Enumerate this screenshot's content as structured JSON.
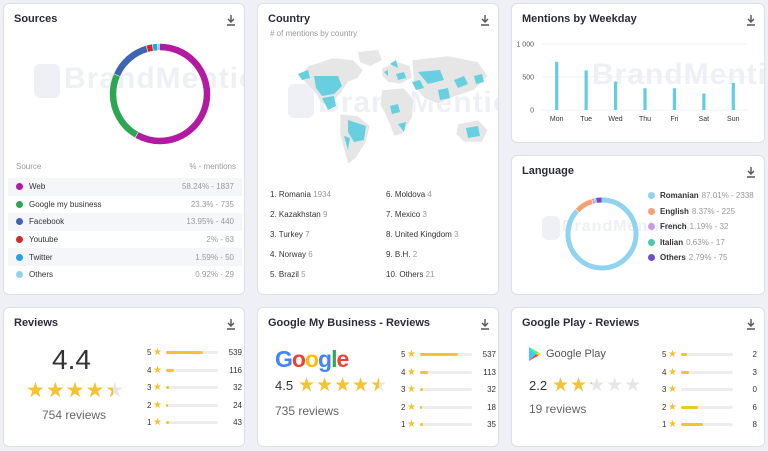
{
  "colors": {
    "web": "#b21aa1",
    "gmb": "#2ea552",
    "facebook": "#3e64b4",
    "youtube": "#d12a2a",
    "twitter": "#26a2e6",
    "others": "#8fd3f0",
    "bar": "#62cde0",
    "star": "#f5c330"
  },
  "watermark": "BrandMentions",
  "sources": {
    "title": "Sources",
    "col_source": "Source",
    "col_mentions": "% - mentions",
    "items": [
      {
        "label": "Web",
        "value": "58.24% - 1837",
        "pct": 58.24,
        "color": "#b21aa1"
      },
      {
        "label": "Google my business",
        "value": "23.3% - 735",
        "pct": 23.3,
        "color": "#2ea552"
      },
      {
        "label": "Facebook",
        "value": "13.95% - 440",
        "pct": 13.95,
        "color": "#3e64b4"
      },
      {
        "label": "Youtube",
        "value": "2% - 63",
        "pct": 2,
        "color": "#d12a2a"
      },
      {
        "label": "Twitter",
        "value": "1.59% - 50",
        "pct": 1.59,
        "color": "#26a2e6"
      },
      {
        "label": "Others",
        "value": "0.92% - 29",
        "pct": 0.92,
        "color": "#8fd3f0"
      }
    ]
  },
  "country": {
    "title": "Country",
    "subtitle": "# of mentions by country",
    "items": [
      {
        "rank": "1.",
        "name": "Romania",
        "count": "1934"
      },
      {
        "rank": "2.",
        "name": "Kazakhstan",
        "count": "9"
      },
      {
        "rank": "3.",
        "name": "Turkey",
        "count": "7"
      },
      {
        "rank": "4.",
        "name": "Norway",
        "count": "6"
      },
      {
        "rank": "5.",
        "name": "Brazil",
        "count": "5"
      },
      {
        "rank": "6.",
        "name": "Moldova",
        "count": "4"
      },
      {
        "rank": "7.",
        "name": "Mexico",
        "count": "3"
      },
      {
        "rank": "8.",
        "name": "United Kingdom",
        "count": "3"
      },
      {
        "rank": "9.",
        "name": "B.H.",
        "count": "2"
      },
      {
        "rank": "10.",
        "name": "Others",
        "count": "21"
      }
    ]
  },
  "weekday": {
    "title": "Mentions by Weekday",
    "chart_data": {
      "type": "bar",
      "title": "Mentions by Weekday",
      "categories": [
        "Mon",
        "Tue",
        "Wed",
        "Thu",
        "Fri",
        "Sat",
        "Sun"
      ],
      "values": [
        730,
        600,
        430,
        330,
        330,
        250,
        410
      ],
      "ylim": [
        0,
        1000
      ],
      "yticks": [
        "1 000",
        "500",
        "0"
      ]
    }
  },
  "language": {
    "title": "Language",
    "items": [
      {
        "name": "Romanian",
        "value": "87.01% - 2338",
        "pct": 87.01,
        "color": "#8fd3f0"
      },
      {
        "name": "English",
        "value": "8.37% - 225",
        "pct": 8.37,
        "color": "#f4a274"
      },
      {
        "name": "French",
        "value": "1.19% - 32",
        "pct": 1.19,
        "color": "#c79be0"
      },
      {
        "name": "Italian",
        "value": "0.63% - 17",
        "pct": 0.63,
        "color": "#4ec9a8"
      },
      {
        "name": "Others",
        "value": "2.79% - 75",
        "pct": 2.79,
        "color": "#6b4fd0"
      }
    ]
  },
  "reviews": {
    "title": "Reviews",
    "score": "4.4",
    "rating": 4.4,
    "count_label": "754 reviews",
    "dist": [
      {
        "star": "5",
        "count": "539",
        "frac": 0.72
      },
      {
        "star": "4",
        "count": "116",
        "frac": 0.16
      },
      {
        "star": "3",
        "count": "32",
        "frac": 0.05
      },
      {
        "star": "2",
        "count": "24",
        "frac": 0.04
      },
      {
        "star": "1",
        "count": "43",
        "frac": 0.06
      }
    ]
  },
  "gmb_reviews": {
    "title": "Google My Business - Reviews",
    "logo_text": "Google",
    "score": "4.5",
    "rating": 4.5,
    "count_label": "735 reviews",
    "dist": [
      {
        "star": "5",
        "count": "537",
        "frac": 0.73
      },
      {
        "star": "4",
        "count": "113",
        "frac": 0.15
      },
      {
        "star": "3",
        "count": "32",
        "frac": 0.05
      },
      {
        "star": "2",
        "count": "18",
        "frac": 0.03
      },
      {
        "star": "1",
        "count": "35",
        "frac": 0.05
      }
    ]
  },
  "gplay_reviews": {
    "title": "Google Play - Reviews",
    "logo_text": "Google Play",
    "score": "2.2",
    "rating": 2.2,
    "count_label": "19 reviews",
    "dist": [
      {
        "star": "5",
        "count": "2",
        "frac": 0.12
      },
      {
        "star": "4",
        "count": "3",
        "frac": 0.16
      },
      {
        "star": "3",
        "count": "0",
        "frac": 0.0
      },
      {
        "star": "2",
        "count": "6",
        "frac": 0.32
      },
      {
        "star": "1",
        "count": "8",
        "frac": 0.42
      }
    ]
  }
}
